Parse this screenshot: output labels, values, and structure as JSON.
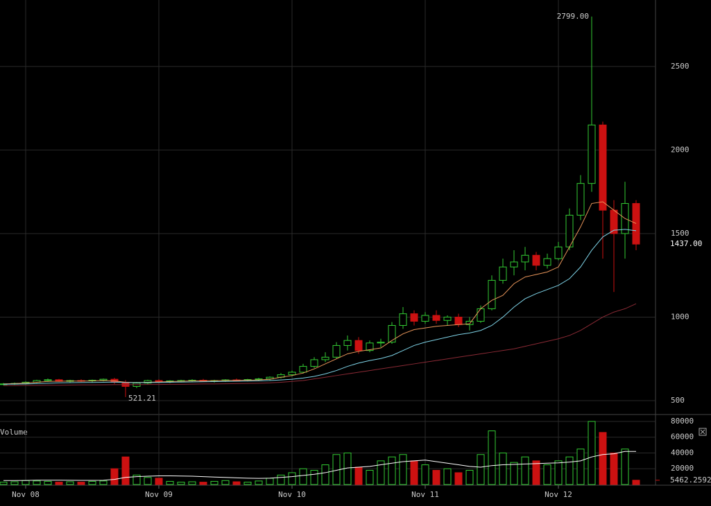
{
  "chart_data": [
    {
      "type": "candlestick",
      "categories": [
        null,
        null,
        "Nov 08",
        null,
        null,
        null,
        null,
        null,
        null,
        null,
        null,
        null,
        null,
        null,
        "Nov 09",
        null,
        null,
        null,
        null,
        null,
        null,
        null,
        null,
        null,
        null,
        null,
        "Nov 10",
        null,
        null,
        null,
        null,
        null,
        null,
        null,
        null,
        null,
        null,
        null,
        "Nov 11",
        null,
        null,
        null,
        null,
        null,
        null,
        null,
        null,
        null,
        null,
        null,
        "Nov 12",
        null,
        null,
        null,
        null,
        null,
        null,
        null
      ],
      "open": [
        598,
        600,
        603,
        610,
        620,
        625,
        615,
        620,
        618,
        622,
        628,
        610,
        585,
        605,
        620,
        615,
        618,
        620,
        622,
        616,
        620,
        624,
        622,
        626,
        630,
        640,
        655,
        670,
        705,
        745,
        760,
        830,
        860,
        800,
        845,
        850,
        950,
        1020,
        975,
        1010,
        980,
        1000,
        955,
        975,
        1050,
        1220,
        1300,
        1330,
        1370,
        1310,
        1350,
        1420,
        1610,
        1800,
        2150,
        1640,
        1500,
        1680
      ],
      "high": [
        605,
        608,
        615,
        625,
        632,
        630,
        625,
        628,
        626,
        632,
        636,
        622,
        612,
        625,
        628,
        622,
        625,
        628,
        630,
        625,
        628,
        632,
        630,
        636,
        645,
        665,
        680,
        720,
        760,
        790,
        850,
        890,
        880,
        860,
        870,
        970,
        1060,
        1040,
        1030,
        1040,
        1010,
        1020,
        1000,
        1070,
        1250,
        1350,
        1400,
        1420,
        1390,
        1380,
        1450,
        1650,
        1850,
        2799,
        2170,
        1700,
        1810,
        1700
      ],
      "low": [
        592,
        595,
        598,
        605,
        612,
        612,
        608,
        612,
        610,
        615,
        600,
        521.21,
        575,
        598,
        608,
        605,
        610,
        612,
        612,
        608,
        612,
        615,
        615,
        618,
        622,
        632,
        645,
        662,
        695,
        730,
        752,
        800,
        780,
        790,
        820,
        840,
        930,
        950,
        960,
        960,
        950,
        940,
        920,
        965,
        1040,
        1200,
        1250,
        1280,
        1280,
        1290,
        1340,
        1400,
        1580,
        1750,
        1350,
        1150,
        1350,
        1400
      ],
      "close": [
        600,
        603,
        610,
        620,
        625,
        615,
        620,
        618,
        622,
        628,
        610,
        585,
        605,
        620,
        615,
        618,
        620,
        622,
        616,
        620,
        624,
        622,
        626,
        630,
        640,
        655,
        670,
        705,
        745,
        760,
        830,
        860,
        800,
        845,
        850,
        950,
        1020,
        975,
        1010,
        980,
        1000,
        955,
        975,
        1050,
        1220,
        1300,
        1330,
        1370,
        1310,
        1350,
        1420,
        1610,
        1800,
        2150,
        1640,
        1500,
        1680,
        1437
      ],
      "up_color": "#33cc33",
      "down_color": "#cc1111",
      "overlays": [
        {
          "color": "#e8955a",
          "values": [
            600,
            602,
            605,
            610,
            615,
            616,
            617,
            617,
            618,
            620,
            618,
            610,
            608,
            610,
            612,
            614,
            616,
            618,
            618,
            619,
            620,
            621,
            622,
            624,
            628,
            640,
            650,
            665,
            690,
            720,
            750,
            780,
            795,
            805,
            815,
            860,
            900,
            925,
            935,
            945,
            950,
            955,
            960,
            1050,
            1100,
            1130,
            1200,
            1240,
            1255,
            1270,
            1300,
            1420,
            1540,
            1680,
            1690,
            1640,
            1590,
            1560
          ]
        },
        {
          "color": "#7fd4e8",
          "values": [
            598,
            599,
            600,
            602,
            604,
            606,
            607,
            608,
            609,
            610,
            611,
            608,
            607,
            608,
            609,
            610,
            611,
            612,
            613,
            614,
            615,
            616,
            617,
            618,
            620,
            624,
            628,
            635,
            645,
            660,
            680,
            705,
            725,
            740,
            752,
            770,
            800,
            830,
            850,
            865,
            880,
            895,
            905,
            920,
            950,
            1000,
            1060,
            1110,
            1140,
            1165,
            1190,
            1230,
            1300,
            1400,
            1480,
            1520,
            1525,
            1517
          ]
        },
        {
          "color": "#8b2a35",
          "values": [
            590,
            590,
            591,
            591,
            592,
            592,
            593,
            594,
            594,
            595,
            596,
            596,
            596,
            597,
            597,
            598,
            598,
            599,
            600,
            600,
            601,
            602,
            603,
            604,
            606,
            610,
            615,
            620,
            630,
            640,
            650,
            660,
            670,
            680,
            690,
            700,
            710,
            720,
            730,
            740,
            750,
            760,
            770,
            780,
            790,
            800,
            810,
            825,
            840,
            855,
            870,
            890,
            920,
            960,
            1000,
            1030,
            1050,
            1080
          ]
        }
      ],
      "ylim": [
        421,
        2898
      ],
      "yticks": [
        500,
        1000,
        1500,
        2000,
        2500
      ],
      "grid": true,
      "annotations": [
        {
          "value": 2799,
          "label": "2799.00"
        },
        {
          "value": 521.21,
          "label": "521.21"
        },
        {
          "value": 1437,
          "label": "1437.00"
        }
      ]
    },
    {
      "type": "volume",
      "title": "Volume",
      "values": [
        3000,
        3500,
        5000,
        4500,
        4000,
        3000,
        3500,
        3000,
        4000,
        4500,
        20000,
        35000,
        12000,
        9000,
        8000,
        4000,
        3000,
        3500,
        3000,
        4000,
        5000,
        3500,
        3000,
        4500,
        8000,
        12000,
        15000,
        20000,
        18000,
        25000,
        38000,
        40000,
        22000,
        18000,
        30000,
        35000,
        38000,
        30000,
        25000,
        18000,
        20000,
        15000,
        18000,
        38000,
        68000,
        40000,
        28000,
        35000,
        30000,
        25000,
        30000,
        35000,
        45000,
        80000,
        66000,
        40000,
        45000,
        5462.2592
      ],
      "overlay": {
        "color": "#ffffff",
        "values": [
          5000,
          5000,
          5200,
          5500,
          5500,
          5500,
          5400,
          5300,
          5300,
          5400,
          6500,
          9000,
          10000,
          10500,
          11000,
          11000,
          10800,
          10500,
          10000,
          9500,
          9000,
          8500,
          8000,
          7800,
          8000,
          9000,
          10000,
          11500,
          13000,
          15000,
          18000,
          21000,
          22000,
          23000,
          25000,
          27000,
          29000,
          30000,
          31000,
          29000,
          27000,
          25000,
          23000,
          22000,
          24000,
          25000,
          25500,
          26000,
          26500,
          27000,
          27500,
          28500,
          30000,
          35000,
          38000,
          39000,
          42000,
          42000
        ]
      },
      "ylim": [
        0,
        87000
      ],
      "yticks": [
        20000,
        40000,
        60000,
        80000
      ]
    }
  ]
}
